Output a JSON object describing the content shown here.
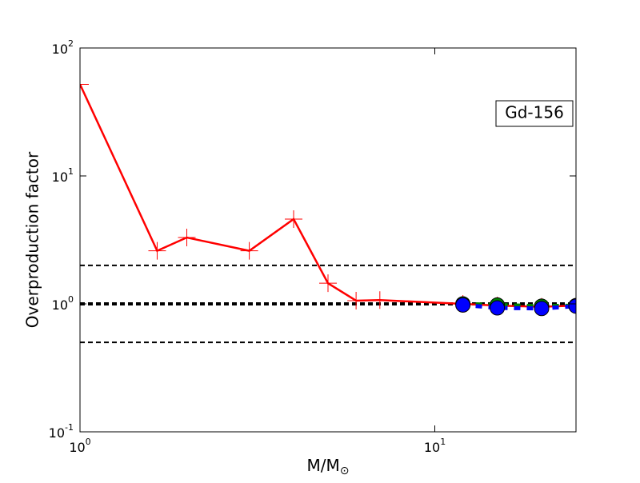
{
  "chart_data": {
    "type": "line",
    "annotation": "Gd-156",
    "xlabel": "M/M",
    "xlabel_sub": "⊙",
    "ylabel": "Overproduction factor",
    "xscale": "log",
    "yscale": "log",
    "xlim": [
      1,
      25
    ],
    "ylim": [
      0.1,
      100
    ],
    "xticks": [
      {
        "value": 1,
        "label": "10",
        "exponent": "0"
      },
      {
        "value": 10,
        "label": "10",
        "exponent": "1"
      }
    ],
    "yticks": [
      {
        "value": 0.1,
        "label": "10",
        "exponent": "-1"
      },
      {
        "value": 1,
        "label": "10",
        "exponent": "0"
      },
      {
        "value": 10,
        "label": "10",
        "exponent": "1"
      },
      {
        "value": 100,
        "label": "10",
        "exponent": "2"
      }
    ],
    "hlines": [
      0.5,
      1,
      2
    ],
    "series": [
      {
        "color": "#ff0000",
        "marker": "plus",
        "dash": false,
        "x": [
          1,
          1.65,
          2,
          3,
          4,
          5,
          6,
          7,
          12,
          15,
          20,
          25
        ],
        "values": [
          52,
          2.6,
          3.3,
          2.6,
          4.6,
          1.45,
          1.06,
          1.07,
          1.0,
          0.97,
          0.95,
          0.97
        ]
      },
      {
        "color": "#008000",
        "marker": "circle",
        "dash": true,
        "x": [
          12,
          15,
          20,
          25
        ],
        "values": [
          1.0,
          0.98,
          0.96,
          0.97
        ]
      },
      {
        "color": "#0000ff",
        "marker": "circle",
        "dash": true,
        "x": [
          12,
          15,
          20,
          25
        ],
        "values": [
          0.98,
          0.93,
          0.92,
          0.96
        ]
      }
    ]
  }
}
